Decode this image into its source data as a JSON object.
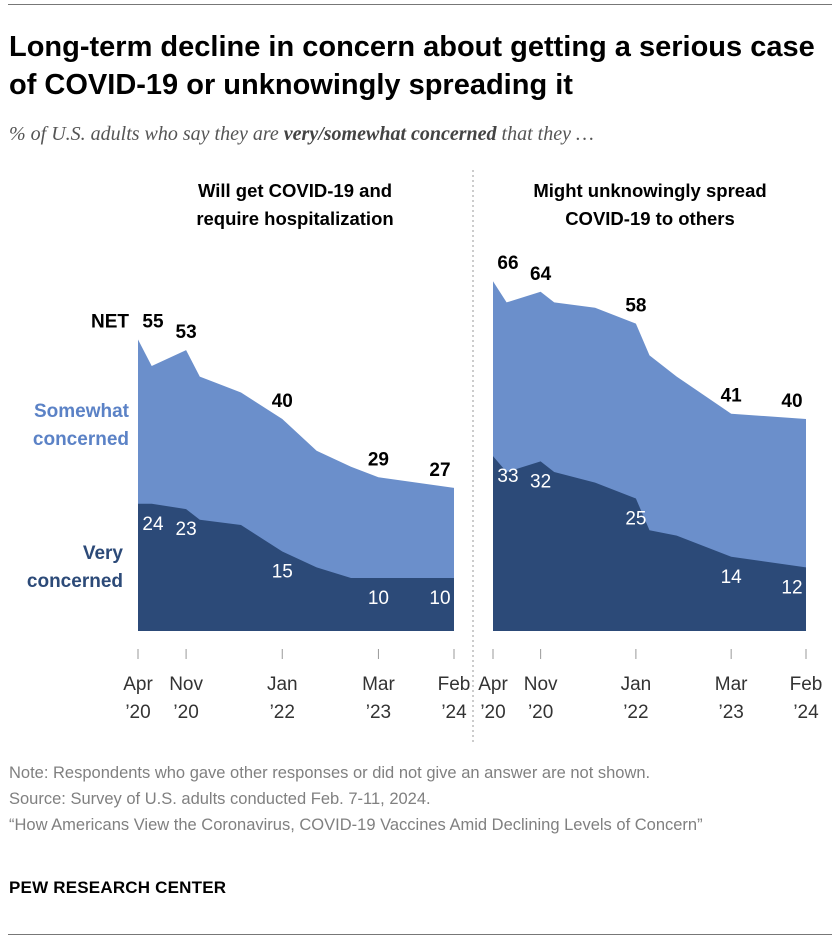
{
  "title": "Long-term decline in concern about getting a serious case of COVID-19 or unknowingly spreading it",
  "subtitle": {
    "prefix": "% of U.S. adults who say they are",
    "emphasis": "very/somewhat concerned",
    "suffix": "that they …"
  },
  "colors": {
    "somewhat": "#6b8fcb",
    "very": "#2c4a78",
    "somewhat_label": "#5b82c6",
    "very_label": "#2c4a78"
  },
  "chart_data": [
    {
      "type": "area",
      "title": "Will get COVID-19 and require hospitalization",
      "x": [
        "Apr 2020",
        "Jun 2020",
        "Nov 2020",
        "Jan 2021",
        "Jul 2021",
        "Jan 2022",
        "Jun 2022",
        "Nov 2022",
        "Mar 2023",
        "Feb 2024"
      ],
      "tick_labels": [
        {
          "x": "Apr 2020",
          "month": "Apr",
          "year": "’20"
        },
        {
          "x": "Nov 2020",
          "month": "Nov",
          "year": "’20"
        },
        {
          "x": "Jan 2022",
          "month": "Jan",
          "year": "’22"
        },
        {
          "x": "Mar 2023",
          "month": "Mar",
          "year": "’23"
        },
        {
          "x": "Feb 2024",
          "month": "Feb",
          "year": "’24"
        }
      ],
      "series": [
        {
          "name": "Very concerned",
          "values": [
            24,
            24,
            23,
            21,
            20,
            15,
            12,
            10,
            10,
            10
          ]
        },
        {
          "name": "Somewhat concerned",
          "values": [
            31,
            26,
            30,
            27,
            27,
            25,
            22,
            21,
            19,
            17
          ]
        }
      ],
      "net": [
        55,
        50,
        53,
        48,
        45,
        40,
        34,
        31,
        29,
        27
      ],
      "net_label_text": "NET",
      "net_labels": [
        {
          "x": "Apr 2020",
          "value": "55"
        },
        {
          "x": "Nov 2020",
          "value": "53"
        },
        {
          "x": "Jan 2022",
          "value": "40"
        },
        {
          "x": "Mar 2023",
          "value": "29"
        },
        {
          "x": "Feb 2024",
          "value": "27"
        }
      ],
      "very_labels": [
        {
          "x": "Apr 2020",
          "value": "24"
        },
        {
          "x": "Nov 2020",
          "value": "23"
        },
        {
          "x": "Jan 2022",
          "value": "15"
        },
        {
          "x": "Mar 2023",
          "value": "10"
        },
        {
          "x": "Feb 2024",
          "value": "10"
        }
      ],
      "area_labels": {
        "somewhat": [
          "Somewhat",
          "concerned"
        ],
        "very": [
          "Very",
          "concerned"
        ]
      },
      "ylim": [
        0,
        70
      ]
    },
    {
      "type": "area",
      "title": "Might unknowingly spread COVID-19 to others",
      "x": [
        "Apr 2020",
        "Jun 2020",
        "Nov 2020",
        "Jan 2021",
        "Jul 2021",
        "Jan 2022",
        "Mar 2022",
        "Jul 2022",
        "Mar 2023",
        "Feb 2024"
      ],
      "tick_labels": [
        {
          "x": "Apr 2020",
          "month": "Apr",
          "year": "’20"
        },
        {
          "x": "Nov 2020",
          "month": "Nov",
          "year": "’20"
        },
        {
          "x": "Jan 2022",
          "month": "Jan",
          "year": "’22"
        },
        {
          "x": "Mar 2023",
          "month": "Mar",
          "year": "’23"
        },
        {
          "x": "Feb 2024",
          "month": "Feb",
          "year": "’24"
        }
      ],
      "series": [
        {
          "name": "Very concerned",
          "values": [
            33,
            30,
            32,
            30,
            28,
            25,
            19,
            18,
            14,
            12
          ]
        },
        {
          "name": "Somewhat concerned",
          "values": [
            33,
            32,
            32,
            32,
            33,
            33,
            33,
            30,
            27,
            28
          ]
        }
      ],
      "net": [
        66,
        62,
        64,
        62,
        61,
        58,
        52,
        48,
        41,
        40
      ],
      "net_labels": [
        {
          "x": "Apr 2020",
          "value": "66"
        },
        {
          "x": "Nov 2020",
          "value": "64"
        },
        {
          "x": "Jan 2022",
          "value": "58"
        },
        {
          "x": "Mar 2023",
          "value": "41"
        },
        {
          "x": "Feb 2024",
          "value": "40"
        }
      ],
      "very_labels": [
        {
          "x": "Apr 2020",
          "value": "33"
        },
        {
          "x": "Nov 2020",
          "value": "32"
        },
        {
          "x": "Jan 2022",
          "value": "25"
        },
        {
          "x": "Mar 2023",
          "value": "14"
        },
        {
          "x": "Feb 2024",
          "value": "12"
        }
      ],
      "ylim": [
        0,
        70
      ]
    }
  ],
  "footer": {
    "note": "Note: Respondents who gave other responses or did not give an answer are not shown.",
    "source": "Source: Survey of U.S. adults conducted Feb. 7-11, 2024.",
    "report": "“How Americans View the Coronavirus, COVID-19 Vaccines Amid Declining Levels of Concern”",
    "brand": "PEW RESEARCH CENTER"
  }
}
